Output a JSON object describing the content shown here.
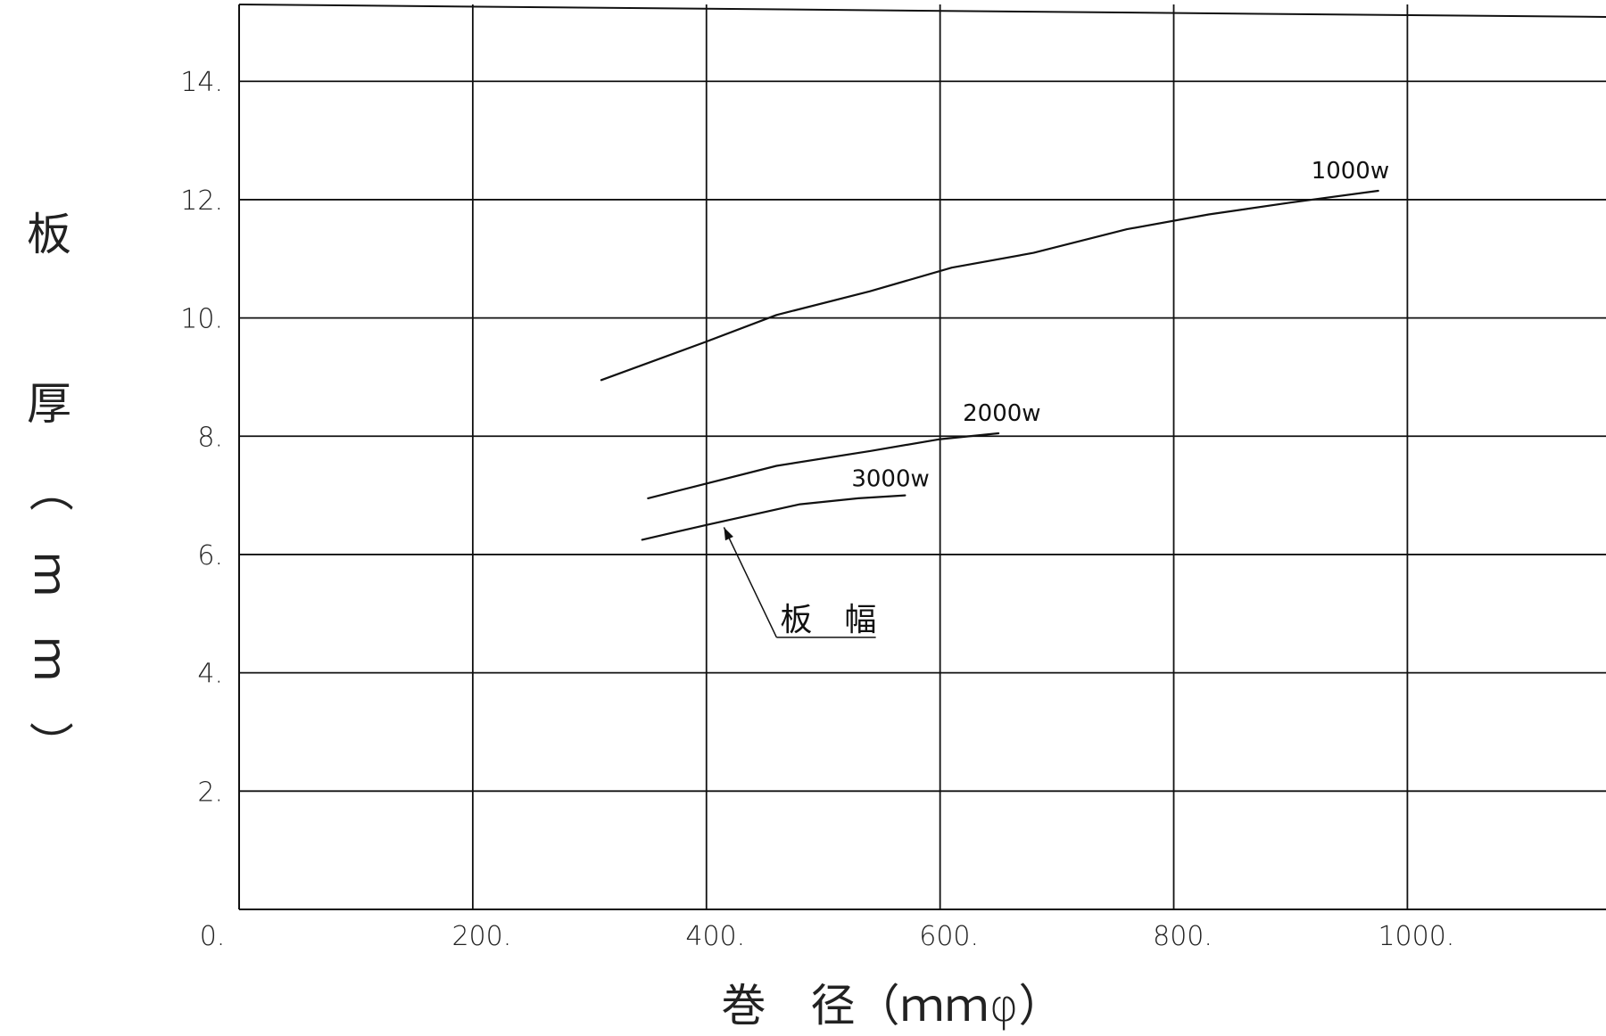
{
  "chart_data": {
    "type": "line",
    "xlabel": "巻　径（ｍｍφ）",
    "ylabel": "板　厚（ｍｍ）",
    "xlim": [
      0,
      1170
    ],
    "ylim": [
      0,
      15.3
    ],
    "x_ticks": [
      200,
      400,
      600,
      800,
      1000
    ],
    "x_tick_labels": [
      "200.",
      "400.",
      "600.",
      "800.",
      "1000."
    ],
    "y_ticks": [
      0,
      2,
      4,
      6,
      8,
      10,
      12,
      14
    ],
    "y_tick_labels": [
      "0.",
      "2.",
      "4.",
      "6.",
      "8.",
      "10.",
      "12.",
      "14."
    ],
    "grid": true,
    "series": [
      {
        "name": "1000w",
        "x": [
          310,
          400,
          460,
          540,
          610,
          680,
          760,
          830,
          900,
          975
        ],
        "y": [
          8.95,
          9.6,
          10.05,
          10.45,
          10.85,
          11.1,
          11.5,
          11.75,
          11.95,
          12.15
        ]
      },
      {
        "name": "2000w",
        "x": [
          350,
          390,
          460,
          540,
          600,
          650
        ],
        "y": [
          6.95,
          7.15,
          7.5,
          7.75,
          7.95,
          8.05
        ]
      },
      {
        "name": "3000w",
        "x": [
          345,
          400,
          480,
          530,
          570
        ],
        "y": [
          6.25,
          6.5,
          6.85,
          6.95,
          7.0
        ]
      }
    ],
    "annotation": {
      "text": "板　幅"
    }
  }
}
